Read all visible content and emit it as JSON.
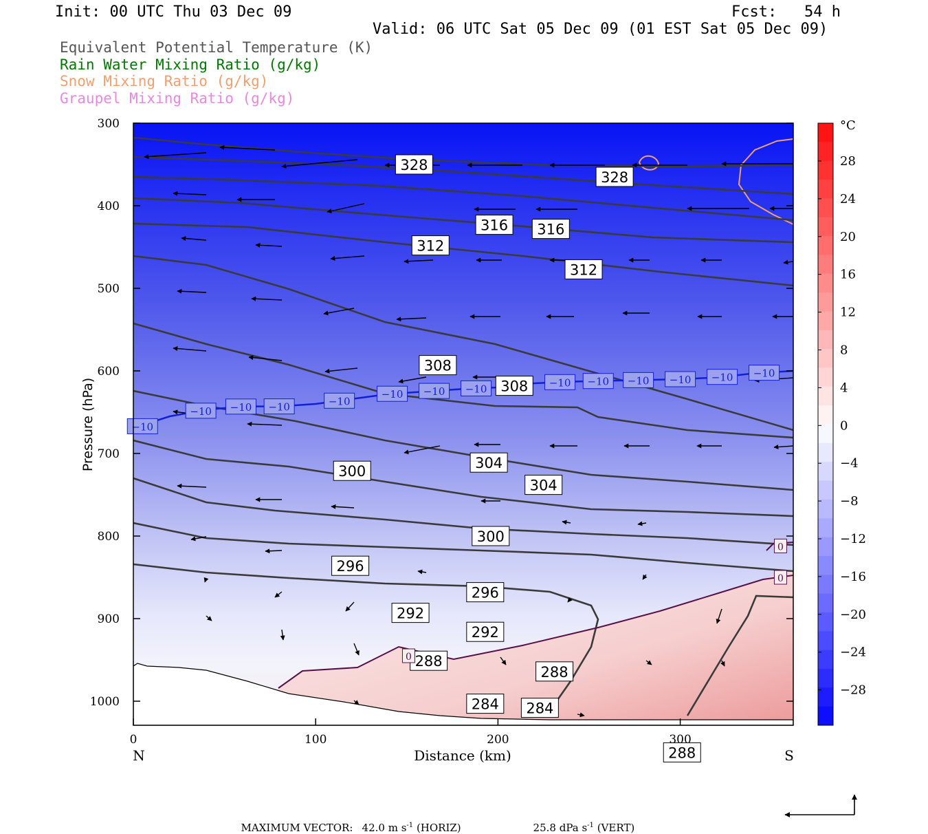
{
  "header": {
    "init": "Init: 00 UTC Thu 03 Dec 09",
    "fcst": "Fcst:   54 h",
    "valid": "Valid: 06 UTC Sat 05 Dec 09 (01 EST Sat 05 Dec 09)"
  },
  "legend": [
    {
      "text": "Equivalent Potential Temperature (K)",
      "color": "#555555"
    },
    {
      "text": "Rain Water Mixing Ratio (g/kg)",
      "color": "#007700"
    },
    {
      "text": "Snow Mixing Ratio (g/kg)",
      "color": "#f0a070"
    },
    {
      "text": "Graupel Mixing Ratio (g/kg)",
      "color": "#e888e0"
    }
  ],
  "chart_data": {
    "type": "heatmap",
    "xlabel": "Distance (km)",
    "ylabel": "Pressure (hPa)",
    "xlim": [
      0,
      362
    ],
    "ylim": [
      1030,
      300
    ],
    "x_ticks": [
      0,
      100,
      200,
      300
    ],
    "y_ticks": [
      300,
      400,
      500,
      600,
      700,
      800,
      900,
      1000
    ],
    "x_end_labels": {
      "left": "N",
      "right": "S"
    },
    "colorbar": {
      "unit": "°C",
      "tick_labels": [
        "28",
        "24",
        "20",
        "16",
        "12",
        "8",
        "4",
        "0",
        "−4",
        "−8",
        "−12",
        "−16",
        "−20",
        "−24",
        "−28"
      ]
    },
    "theta_e_labels": [
      {
        "text": "328",
        "x": 154,
        "p": 350
      },
      {
        "text": "328",
        "x": 264,
        "p": 365
      },
      {
        "text": "316",
        "x": 198,
        "p": 423
      },
      {
        "text": "316",
        "x": 229,
        "p": 428
      },
      {
        "text": "312",
        "x": 163,
        "p": 448
      },
      {
        "text": "312",
        "x": 247,
        "p": 477
      },
      {
        "text": "308",
        "x": 167,
        "p": 593
      },
      {
        "text": "308",
        "x": 209,
        "p": 618
      },
      {
        "text": "304",
        "x": 195,
        "p": 711
      },
      {
        "text": "304",
        "x": 225,
        "p": 738
      },
      {
        "text": "300",
        "x": 120,
        "p": 721
      },
      {
        "text": "300",
        "x": 196,
        "p": 800
      },
      {
        "text": "296",
        "x": 119,
        "p": 836
      },
      {
        "text": "296",
        "x": 193,
        "p": 868
      },
      {
        "text": "292",
        "x": 152,
        "p": 893
      },
      {
        "text": "292",
        "x": 193,
        "p": 916
      },
      {
        "text": "288",
        "x": 162,
        "p": 951
      },
      {
        "text": "288",
        "x": 231,
        "p": 964
      },
      {
        "text": "284",
        "x": 193,
        "p": 1003
      },
      {
        "text": "284",
        "x": 223,
        "p": 1008
      },
      {
        "text": "288",
        "x": 301,
        "p": 1062
      }
    ],
    "isotherm_labels": [
      {
        "text": "0",
        "x": 151,
        "p": 945
      },
      {
        "text": "0",
        "x": 355,
        "p": 812
      },
      {
        "text": "0",
        "x": 355,
        "p": 850
      }
    ],
    "isotherm_minus10_label": "−10",
    "isotherm_minus10": {
      "x": [
        0,
        10,
        20,
        40,
        60,
        80,
        100,
        120,
        140,
        160,
        180,
        200,
        220,
        240,
        260,
        280,
        300,
        320,
        340,
        362
      ],
      "p": [
        672,
        662,
        655,
        647,
        643,
        643,
        640,
        634,
        628,
        625,
        622,
        620,
        615,
        613,
        612,
        611,
        610,
        608,
        603,
        600
      ]
    }
  },
  "footer": {
    "max_vector_label": "MAXIMUM VECTOR:",
    "horiz_value": "42.0 m s",
    "horiz_exp": "-1",
    "horiz_tag": "(HORIZ)",
    "vert_value": "25.8 dPa s",
    "vert_exp": "-1",
    "vert_tag": "(VERT)"
  }
}
